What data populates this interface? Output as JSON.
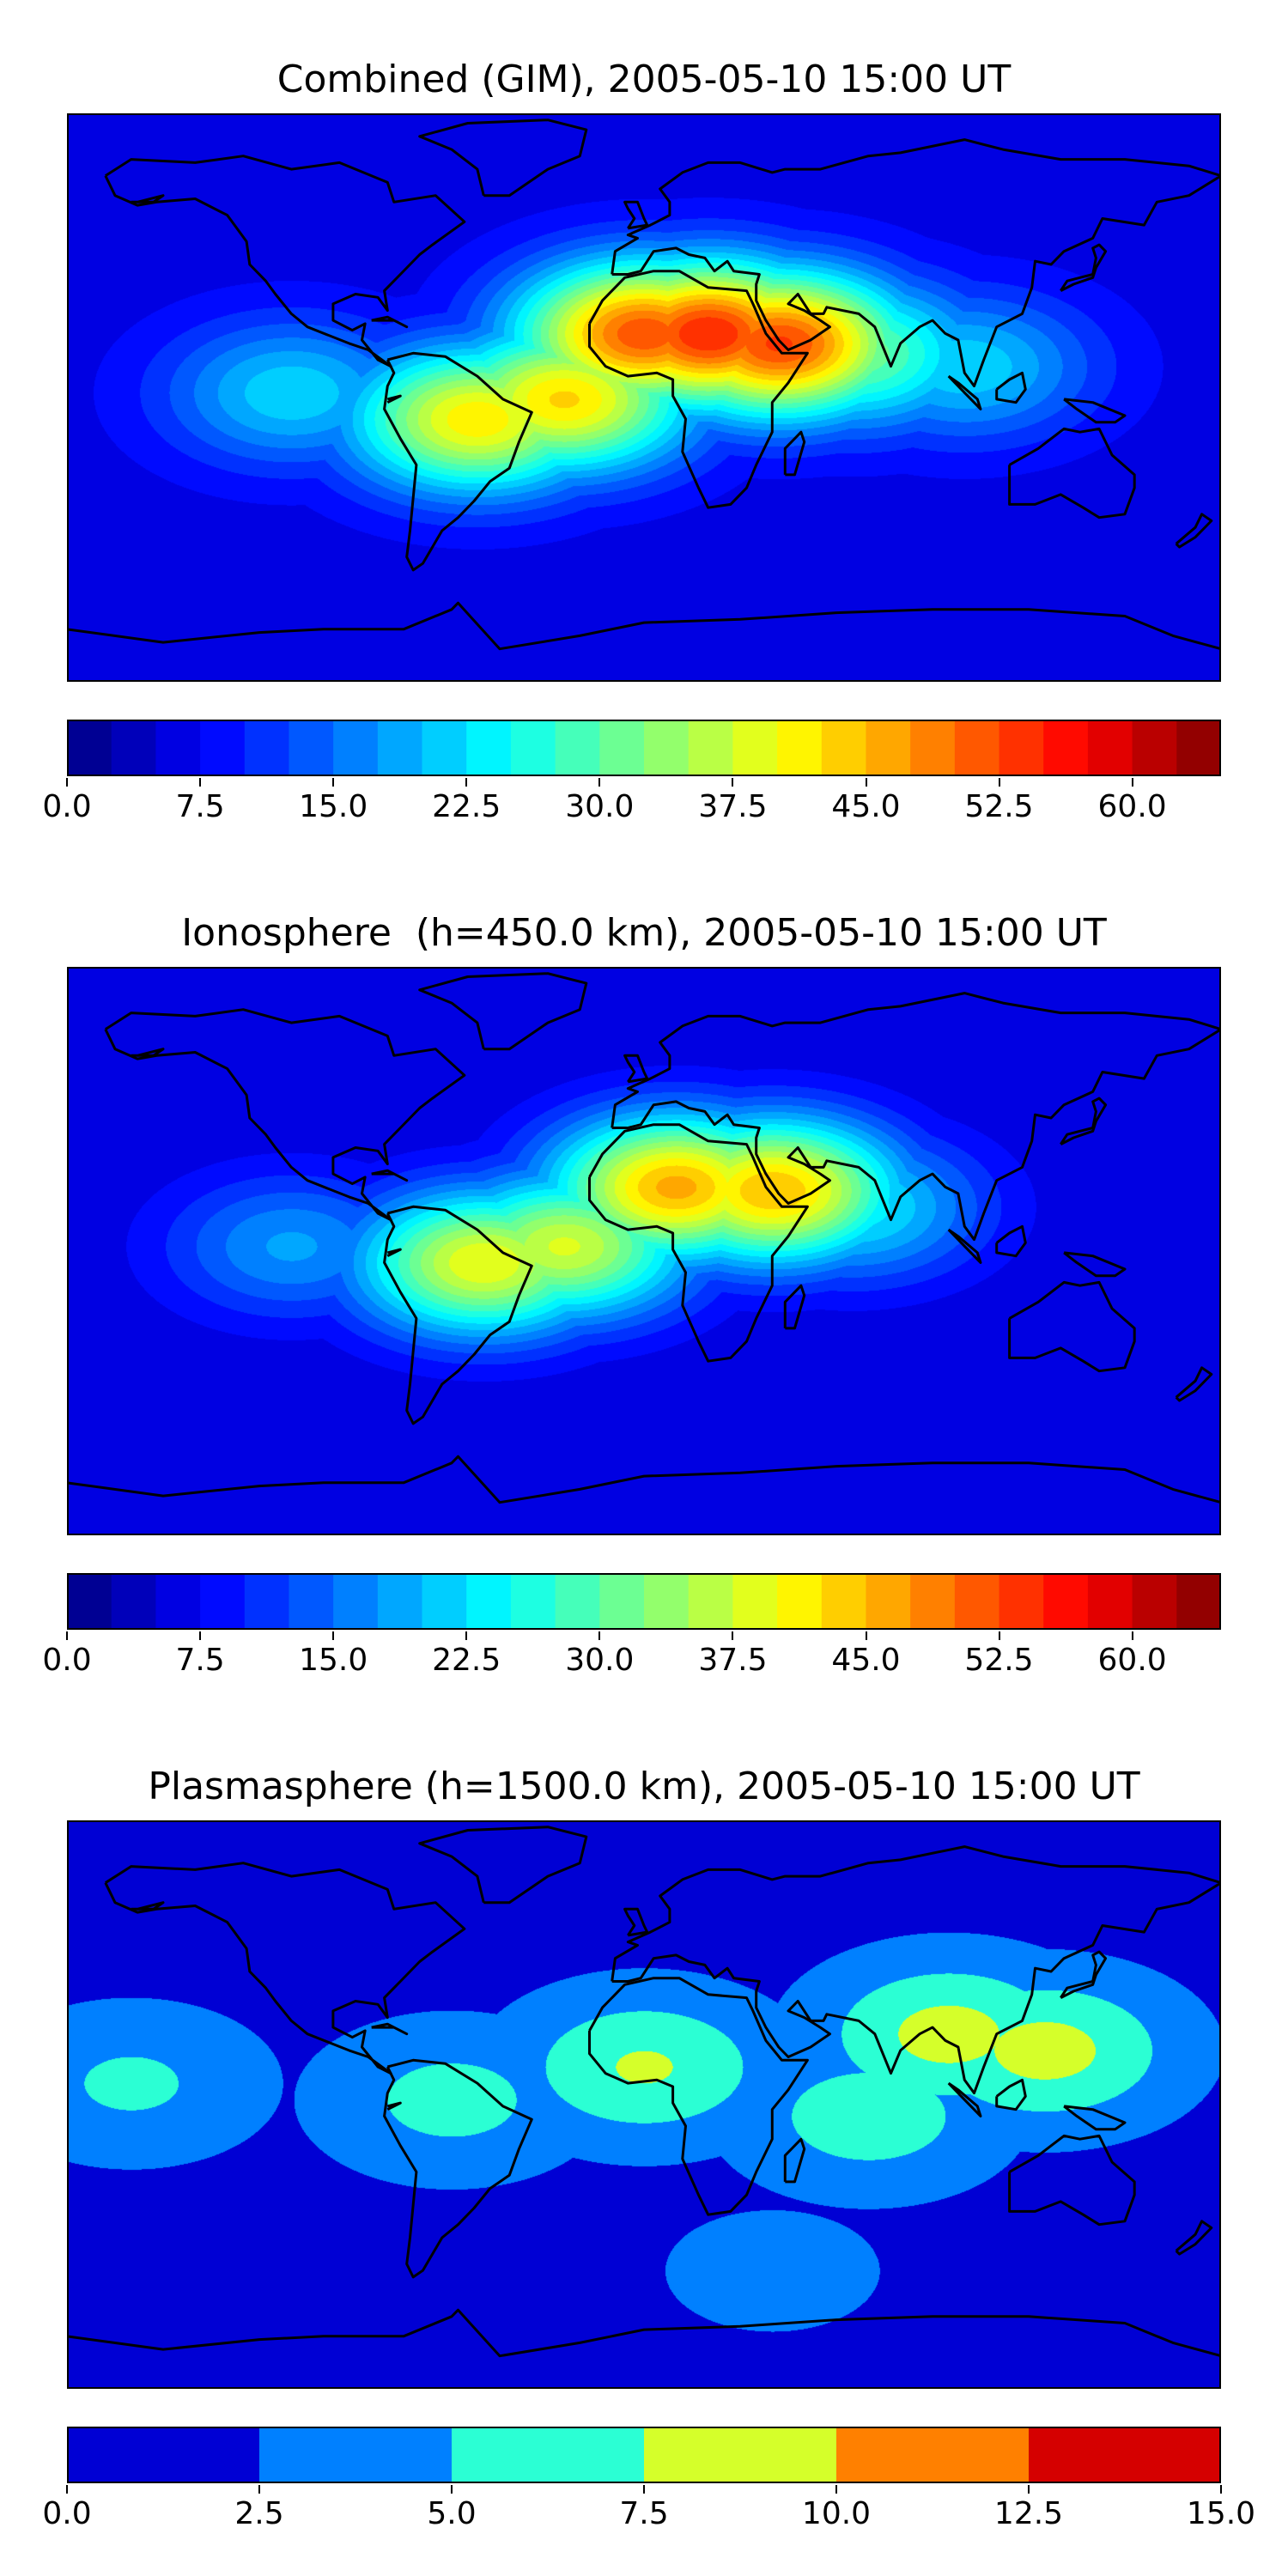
{
  "chart_data": [
    {
      "type": "heatmap",
      "title": "Combined (GIM), 2005-05-10 15:00 UT",
      "projection": "global map with coastlines",
      "colormap": "jet",
      "colorbar": {
        "min": 0.0,
        "max": 65.0,
        "step": 2.5,
        "tick_labels": [
          "0.0",
          "7.5",
          "15.0",
          "22.5",
          "30.0",
          "37.5",
          "45.0",
          "52.5",
          "60.0"
        ],
        "tick_values": [
          0.0,
          7.5,
          15.0,
          22.5,
          30.0,
          37.5,
          45.0,
          52.5,
          60.0
        ]
      },
      "features": [
        {
          "region": "North Africa",
          "lon": 20,
          "lat": 18,
          "value": 55
        },
        {
          "region": "Arabia",
          "lon": 42,
          "lat": 15,
          "value": 53
        },
        {
          "region": "Sahara west",
          "lon": 0,
          "lat": 18,
          "value": 52
        },
        {
          "region": "South America",
          "lon": -52,
          "lat": -8,
          "value": 42
        },
        {
          "region": "South Atlantic",
          "lon": -25,
          "lat": -2,
          "value": 43
        },
        {
          "region": "Indian Ocean",
          "lon": 65,
          "lat": 12,
          "value": 32
        },
        {
          "region": "South East Asia",
          "lon": 100,
          "lat": 8,
          "value": 22
        },
        {
          "region": "Pacific east",
          "lon": -110,
          "lat": 0,
          "value": 22
        }
      ],
      "background_value": 6
    },
    {
      "type": "heatmap",
      "title": "Ionosphere  (h=450.0 km), 2005-05-10 15:00 UT",
      "projection": "global map with coastlines",
      "colormap": "jet",
      "colorbar": {
        "min": 0.0,
        "max": 65.0,
        "step": 2.5,
        "tick_labels": [
          "0.0",
          "7.5",
          "15.0",
          "22.5",
          "30.0",
          "37.5",
          "45.0",
          "52.5",
          "60.0"
        ],
        "tick_values": [
          0.0,
          7.5,
          15.0,
          22.5,
          30.0,
          37.5,
          45.0,
          52.5,
          60.0
        ]
      },
      "features": [
        {
          "region": "North Africa",
          "lon": 10,
          "lat": 18,
          "value": 46
        },
        {
          "region": "Arabia",
          "lon": 40,
          "lat": 17,
          "value": 45
        },
        {
          "region": "South America",
          "lon": -50,
          "lat": -5,
          "value": 40
        },
        {
          "region": "South Atlantic",
          "lon": -25,
          "lat": 0,
          "value": 38
        },
        {
          "region": "Indian Ocean",
          "lon": 65,
          "lat": 12,
          "value": 24
        },
        {
          "region": "Pacific east",
          "lon": -110,
          "lat": 0,
          "value": 18
        }
      ],
      "background_value": 5
    },
    {
      "type": "heatmap",
      "title": "Plasmasphere (h=1500.0 km), 2005-05-10 15:00 UT",
      "projection": "global map with coastlines",
      "colormap": "jet",
      "colorbar": {
        "min": 0.0,
        "max": 15.0,
        "step": 2.5,
        "tick_labels": [
          "0.0",
          "2.5",
          "5.0",
          "7.5",
          "10.0",
          "12.5",
          "15.0"
        ],
        "tick_values": [
          0.0,
          2.5,
          5.0,
          7.5,
          10.0,
          12.5,
          15.0
        ]
      },
      "features": [
        {
          "region": "Asia",
          "lon": 95,
          "lat": 20,
          "value": 8.5
        },
        {
          "region": "West Pacific",
          "lon": 125,
          "lat": 15,
          "value": 8.5
        },
        {
          "region": "North Africa",
          "lon": 0,
          "lat": 10,
          "value": 7.8
        },
        {
          "region": "Indian Ocean",
          "lon": 70,
          "lat": -5,
          "value": 6.5
        },
        {
          "region": "South America",
          "lon": -60,
          "lat": 0,
          "value": 6.0
        },
        {
          "region": "Central Pacific",
          "lon": -160,
          "lat": 5,
          "value": 5.5
        },
        {
          "region": "Southern Ocean",
          "lon": 40,
          "lat": -52,
          "value": 3.5
        }
      ],
      "background_value": 1.5
    }
  ]
}
